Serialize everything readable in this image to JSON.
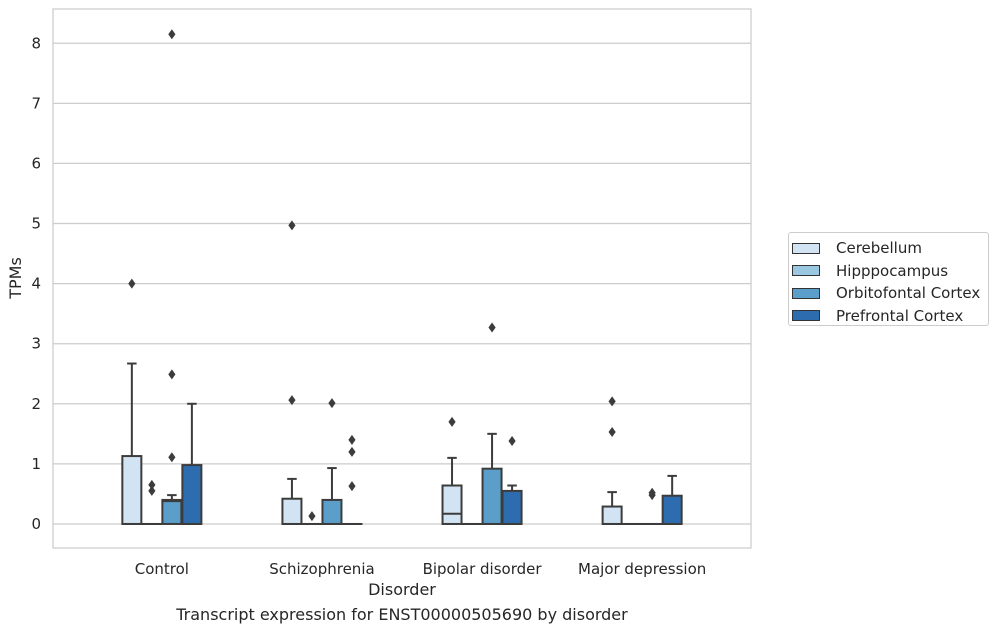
{
  "chart_data": {
    "type": "box",
    "title": "",
    "caption": "Transcript expression for ENST00000505690 by disorder",
    "xlabel": "Disorder",
    "ylabel": "TPMs",
    "ylim": [
      -0.4,
      8.57
    ],
    "yticks": [
      "0",
      "1",
      "2",
      "3",
      "4",
      "5",
      "6",
      "7",
      "8"
    ],
    "categories": [
      "Control",
      "Schizophrenia",
      "Bipolar disorder",
      "Major depression"
    ],
    "grid": "horizontal",
    "legend_position": "right",
    "series": [
      {
        "name": "Cerebellum",
        "color": "#d2e3f3",
        "boxes": [
          {
            "q1": 0,
            "median": 0,
            "q3": 1.13,
            "whisker_low": 0,
            "whisker_high": 2.67,
            "outliers": [
              4.0
            ]
          },
          {
            "q1": 0,
            "median": 0,
            "q3": 0.42,
            "whisker_low": 0,
            "whisker_high": 0.75,
            "outliers": [
              2.06,
              4.97
            ]
          },
          {
            "q1": 0,
            "median": 0.17,
            "q3": 0.64,
            "whisker_low": 0,
            "whisker_high": 1.1,
            "outliers": [
              1.7
            ]
          },
          {
            "q1": 0,
            "median": 0,
            "q3": 0.29,
            "whisker_low": 0,
            "whisker_high": 0.53,
            "outliers": [
              1.53,
              2.04
            ]
          }
        ]
      },
      {
        "name": "Hipppocampus",
        "color": "#9ac8e0",
        "boxes": [
          {
            "q1": 0,
            "median": 0,
            "q3": 0,
            "whisker_low": 0,
            "whisker_high": 0,
            "outliers": [
              0.55,
              0.65
            ]
          },
          {
            "q1": 0,
            "median": 0,
            "q3": 0,
            "whisker_low": 0,
            "whisker_high": 0,
            "outliers": [
              0.13
            ]
          },
          {
            "q1": 0,
            "median": 0,
            "q3": 0,
            "whisker_low": 0,
            "whisker_high": 0,
            "outliers": []
          },
          {
            "q1": 0,
            "median": 0,
            "q3": 0,
            "whisker_low": 0,
            "whisker_high": 0,
            "outliers": []
          }
        ]
      },
      {
        "name": "Orbitofontal Cortex",
        "color": "#5a9ec9",
        "boxes": [
          {
            "q1": 0,
            "median": 0.38,
            "q3": 0.4,
            "whisker_low": 0,
            "whisker_high": 0.48,
            "outliers": [
              1.11,
              2.49,
              8.15
            ]
          },
          {
            "q1": 0,
            "median": 0,
            "q3": 0.4,
            "whisker_low": 0,
            "whisker_high": 0.93,
            "outliers": [
              2.01
            ]
          },
          {
            "q1": 0,
            "median": 0,
            "q3": 0.92,
            "whisker_low": 0,
            "whisker_high": 1.5,
            "outliers": [
              3.27
            ]
          },
          {
            "q1": 0,
            "median": 0,
            "q3": 0,
            "whisker_low": 0,
            "whisker_high": 0,
            "outliers": [
              0.48,
              0.52
            ]
          }
        ]
      },
      {
        "name": "Prefrontal Cortex",
        "color": "#2d6daf",
        "boxes": [
          {
            "q1": 0,
            "median": 0,
            "q3": 0.98,
            "whisker_low": 0,
            "whisker_high": 2.0,
            "outliers": []
          },
          {
            "q1": 0,
            "median": 0,
            "q3": 0,
            "whisker_low": 0,
            "whisker_high": 0,
            "outliers": [
              0.63,
              1.2,
              1.4
            ]
          },
          {
            "q1": 0,
            "median": 0,
            "q3": 0.55,
            "whisker_low": 0,
            "whisker_high": 0.64,
            "outliers": [
              1.38
            ]
          },
          {
            "q1": 0,
            "median": 0,
            "q3": 0.47,
            "whisker_low": 0,
            "whisker_high": 0.8,
            "outliers": []
          }
        ]
      }
    ]
  }
}
